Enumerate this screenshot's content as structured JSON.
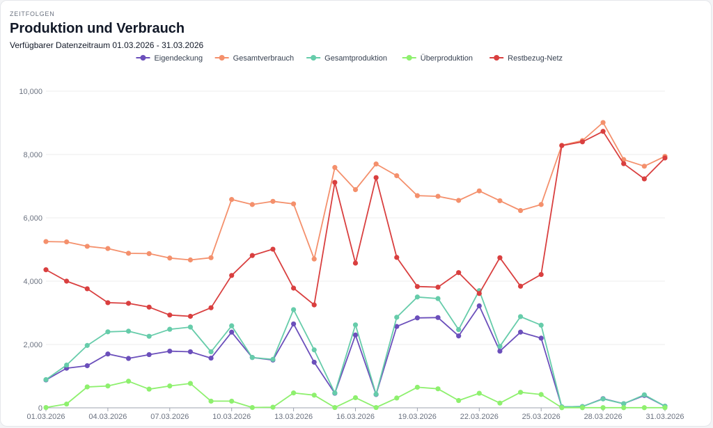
{
  "header": {
    "eyebrow": "ZEITFOLGEN",
    "title": "Produktion und Verbrauch",
    "subtitle": "Verfügbarer Datenzeitraum 01.03.2026 - 31.03.2026"
  },
  "chart_data": {
    "type": "line",
    "title": "Produktion und Verbrauch",
    "xlabel": "",
    "ylabel": "",
    "ylim": [
      0,
      10000
    ],
    "yticks": [
      0,
      2000,
      4000,
      6000,
      8000,
      10000
    ],
    "ytick_labels": [
      "0",
      "2,000",
      "4,000",
      "6,000",
      "8,000",
      "10,000"
    ],
    "xtick_indices": [
      0,
      3,
      6,
      9,
      12,
      15,
      18,
      21,
      24,
      27,
      30
    ],
    "grid": true,
    "legend_position": "top-center",
    "categories": [
      "01.03.2026",
      "02.03.2026",
      "03.03.2026",
      "04.03.2026",
      "05.03.2026",
      "06.03.2026",
      "07.03.2026",
      "08.03.2026",
      "09.03.2026",
      "10.03.2026",
      "11.03.2026",
      "12.03.2026",
      "13.03.2026",
      "14.03.2026",
      "15.03.2026",
      "16.03.2026",
      "17.03.2026",
      "18.03.2026",
      "19.03.2026",
      "20.03.2026",
      "21.03.2026",
      "22.03.2026",
      "23.03.2026",
      "24.03.2026",
      "25.03.2026",
      "26.03.2026",
      "27.03.2026",
      "28.03.2026",
      "29.03.2026",
      "30.03.2026",
      "31.03.2026"
    ],
    "series": [
      {
        "name": "Eigendeckung",
        "color": "#6b4fbb",
        "values": [
          880,
          1250,
          1330,
          1700,
          1560,
          1680,
          1790,
          1770,
          1570,
          2390,
          1590,
          1510,
          2650,
          1440,
          460,
          2300,
          420,
          2570,
          2840,
          2850,
          2270,
          3220,
          1790,
          2390,
          2200,
          30,
          40,
          290,
          130,
          390,
          50
        ]
      },
      {
        "name": "Gesamtverbrauch",
        "color": "#f4906c",
        "values": [
          5250,
          5240,
          5100,
          5030,
          4880,
          4870,
          4730,
          4670,
          4740,
          6580,
          6420,
          6520,
          6440,
          4700,
          7590,
          6890,
          7700,
          7330,
          6700,
          6680,
          6550,
          6850,
          6540,
          6230,
          6420,
          8290,
          8440,
          9010,
          7840,
          7630,
          7940
        ]
      },
      {
        "name": "Gesamtproduktion",
        "color": "#66ccaa",
        "values": [
          890,
          1350,
          1970,
          2400,
          2420,
          2260,
          2480,
          2550,
          1770,
          2590,
          1590,
          1530,
          3100,
          1830,
          470,
          2620,
          430,
          2860,
          3500,
          3450,
          2470,
          3700,
          1940,
          2880,
          2610,
          30,
          40,
          280,
          130,
          410,
          50
        ]
      },
      {
        "name": "Überproduktion",
        "color": "#8ef06e",
        "values": [
          10,
          120,
          660,
          690,
          840,
          590,
          690,
          770,
          210,
          210,
          10,
          20,
          470,
          400,
          10,
          320,
          10,
          310,
          650,
          600,
          230,
          460,
          150,
          490,
          420,
          5,
          5,
          5,
          5,
          5,
          5
        ]
      },
      {
        "name": "Restbezug-Netz",
        "color": "#d93f3f",
        "values": [
          4360,
          4000,
          3760,
          3320,
          3300,
          3180,
          2930,
          2890,
          3160,
          4180,
          4810,
          5010,
          3780,
          3250,
          7120,
          4570,
          7270,
          4750,
          3830,
          3810,
          4270,
          3610,
          4740,
          3840,
          4210,
          8280,
          8400,
          8730,
          7710,
          7230,
          7890
        ]
      }
    ]
  }
}
